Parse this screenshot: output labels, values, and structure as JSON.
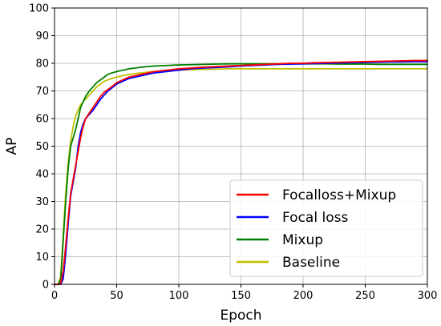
{
  "chart_data": {
    "type": "line",
    "xlabel": "Epoch",
    "ylabel": "AP",
    "xlim": [
      0,
      300
    ],
    "ylim": [
      0,
      100
    ],
    "xticks": [
      0,
      50,
      100,
      150,
      200,
      250,
      300
    ],
    "yticks": [
      0,
      10,
      20,
      30,
      40,
      50,
      60,
      70,
      80,
      90,
      100
    ],
    "grid": true,
    "legend_position": "lower-right",
    "x": [
      0,
      3,
      5,
      7,
      9,
      11,
      13,
      15,
      17,
      19,
      21,
      23,
      25,
      28,
      31,
      34,
      37,
      40,
      43,
      46,
      50,
      55,
      60,
      65,
      70,
      75,
      80,
      90,
      100,
      110,
      120,
      130,
      140,
      150,
      160,
      170,
      180,
      190,
      200,
      210,
      220,
      230,
      240,
      250,
      260,
      270,
      280,
      290,
      300
    ],
    "series": [
      {
        "name": "Focalloss+Mixup",
        "color": "#ff0000",
        "values": [
          0,
          0,
          0.5,
          5,
          14,
          24,
          33,
          38,
          43,
          48,
          53,
          57,
          60,
          62,
          64,
          66,
          68,
          69.5,
          70.5,
          71.5,
          73,
          74,
          75,
          75.5,
          76,
          76.5,
          77,
          77.5,
          78,
          78.3,
          78.6,
          78.8,
          79,
          79.2,
          79.4,
          79.6,
          79.8,
          80,
          80,
          80.2,
          80.3,
          80.4,
          80.5,
          80.6,
          80.7,
          80.8,
          80.9,
          81,
          81
        ]
      },
      {
        "name": "Focal loss",
        "color": "#0000ff",
        "values": [
          0,
          0,
          0,
          2,
          11,
          22,
          32,
          37,
          42,
          50,
          55,
          58,
          60,
          61.5,
          63,
          65,
          67,
          68.5,
          70,
          71,
          72.5,
          73.5,
          74.5,
          75,
          75.5,
          76,
          76.5,
          77,
          77.5,
          78,
          78.3,
          78.5,
          78.7,
          79,
          79.2,
          79.4,
          79.6,
          79.7,
          79.8,
          79.9,
          80,
          80.1,
          80.2,
          80.3,
          80.4,
          80.5,
          80.5,
          80.6,
          80.6
        ]
      },
      {
        "name": "Mixup",
        "color": "#008000",
        "values": [
          0,
          0,
          2,
          16,
          30,
          42,
          50,
          53,
          56,
          60,
          64,
          66,
          68,
          70,
          71.5,
          73,
          74,
          75,
          76,
          76.5,
          77,
          77.5,
          78,
          78.3,
          78.6,
          78.8,
          79,
          79.2,
          79.4,
          79.5,
          79.6,
          79.7,
          79.8,
          79.8,
          79.8,
          79.8,
          79.8,
          79.8,
          79.8,
          79.8,
          79.8,
          79.7,
          79.7,
          79.7,
          79.6,
          79.6,
          79.6,
          79.6,
          79.6
        ]
      },
      {
        "name": "Baseline",
        "color": "#bfbf00",
        "values": [
          0,
          0,
          3,
          18,
          33,
          44,
          52,
          57,
          61,
          63,
          65,
          66,
          67,
          68.5,
          70,
          71.5,
          72.5,
          73.5,
          74,
          74.5,
          75,
          75.5,
          76,
          76.3,
          76.5,
          76.8,
          77,
          77.3,
          77.5,
          77.7,
          77.8,
          77.9,
          78,
          78,
          78,
          78,
          78,
          78,
          78,
          78,
          78,
          78,
          78,
          78,
          78,
          78,
          78,
          78,
          78
        ]
      }
    ]
  }
}
